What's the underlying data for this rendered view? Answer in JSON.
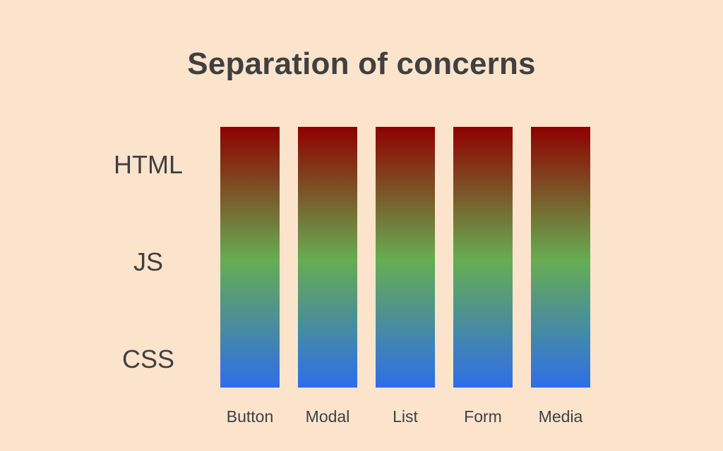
{
  "slide": {
    "title": "Separation of concerns",
    "background_color": "#fce4cc",
    "text_color": "#404040"
  },
  "rows": [
    {
      "label": "HTML"
    },
    {
      "label": "JS"
    },
    {
      "label": "CSS"
    }
  ],
  "columns": [
    {
      "label": "Button"
    },
    {
      "label": "Modal"
    },
    {
      "label": "List"
    },
    {
      "label": "Form"
    },
    {
      "label": "Media"
    }
  ],
  "gradient_colors": {
    "top": "#8f0000",
    "middle": "#66ad51",
    "bottom": "#2e6ee8"
  }
}
